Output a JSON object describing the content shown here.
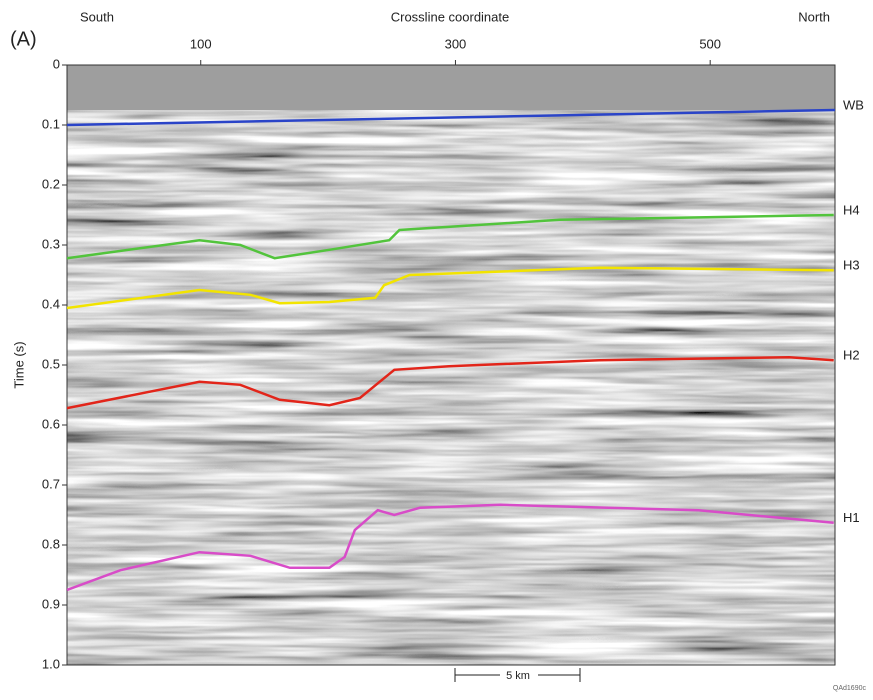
{
  "chart_data": {
    "type": "line",
    "panel_label": "(A)",
    "left_label": "South",
    "title": "Crossline coordinate",
    "right_label": "North",
    "y_label": "Time (s)",
    "scale_label": "5 km",
    "figure_code": "QAd1690c",
    "xlim": [
      -5,
      598
    ],
    "xticks": [
      100,
      300,
      500
    ],
    "ylim": [
      0,
      1.0
    ],
    "yticks": [
      0,
      0.1,
      0.2,
      0.3,
      0.4,
      0.5,
      0.6,
      0.7,
      0.8,
      0.9,
      {
        "value": 1.0,
        "label": "1.0"
      }
    ],
    "y_inverted": true,
    "series": [
      {
        "name": "WB",
        "color": "#2a44c8",
        "x": [
          -5,
          598
        ],
        "values": [
          0.1,
          0.075
        ]
      },
      {
        "name": "H4",
        "color": "#52c43c",
        "x": [
          -5,
          99,
          131,
          158,
          201,
          248,
          256,
          382,
          597
        ],
        "values": [
          0.322,
          0.292,
          0.3,
          0.322,
          0.308,
          0.292,
          0.275,
          0.258,
          0.25
        ]
      },
      {
        "name": "H3",
        "color": "#f2e400",
        "x": [
          -5,
          99,
          139,
          162,
          201,
          237,
          244,
          264,
          413,
          597
        ],
        "values": [
          0.405,
          0.375,
          0.383,
          0.397,
          0.395,
          0.388,
          0.367,
          0.35,
          0.338,
          0.342
        ]
      },
      {
        "name": "H2",
        "color": "#e2251a",
        "x": [
          -5,
          99,
          131,
          162,
          201,
          225,
          252,
          295,
          413,
          562,
          597
        ],
        "values": [
          0.572,
          0.528,
          0.533,
          0.558,
          0.567,
          0.555,
          0.508,
          0.502,
          0.492,
          0.487,
          0.492
        ]
      },
      {
        "name": "H1",
        "color": "#d84cc8",
        "x": [
          -5,
          37,
          99,
          139,
          170,
          201,
          213,
          221,
          239,
          252,
          272,
          335,
          491,
          597
        ],
        "values": [
          0.875,
          0.842,
          0.812,
          0.818,
          0.838,
          0.838,
          0.82,
          0.775,
          0.742,
          0.75,
          0.738,
          0.733,
          0.742,
          0.763
        ]
      }
    ]
  }
}
